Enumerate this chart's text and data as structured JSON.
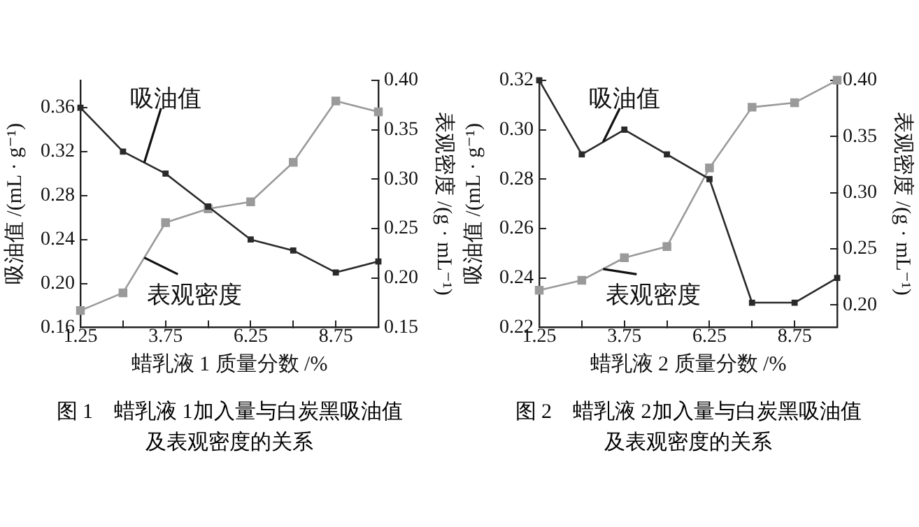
{
  "chart_data": [
    {
      "type": "line",
      "title": "图 1　蜡乳液 1加入量与白炭黑吸油值及表观密度的关系",
      "xlabel": "蜡乳液 1 质量分数 /%",
      "ylabel": "吸油值 /(mL · g⁻¹)",
      "y2label": "表观密度 /(g · mL⁻¹)",
      "x": [
        1.25,
        2.5,
        3.75,
        5.0,
        6.25,
        7.5,
        8.75,
        10.0
      ],
      "xlim": [
        1.25,
        10
      ],
      "xticks": [
        1.25,
        {
          "value": 2.5,
          "label": null
        },
        3.75,
        {
          "value": 5,
          "label": null
        },
        6.25,
        {
          "value": 7.5,
          "label": null
        },
        8.75
      ],
      "ylim": [
        0.16,
        0.385
      ],
      "yticks": [
        0.16,
        {
          "value": 0.2,
          "label": "0.20"
        },
        0.24,
        0.28,
        0.32,
        0.36
      ],
      "y2lim": [
        0.15,
        0.4
      ],
      "y2ticks": [
        0.15,
        {
          "value": 0.2,
          "label": "0.20"
        },
        0.25,
        {
          "value": 0.3,
          "label": "0.30"
        },
        0.35,
        {
          "value": 0.4,
          "label": "0.40"
        }
      ],
      "marker": "square",
      "grid": false,
      "legend": false,
      "series": [
        {
          "name": "吸油值",
          "color": "#2a2a2a",
          "values": [
            0.36,
            0.32,
            0.3,
            0.27,
            0.24,
            0.23,
            0.21,
            0.22
          ]
        },
        {
          "name": "表观密度",
          "color": "#9a9a9a",
          "axis": "y2",
          "values": [
            0.167,
            0.185,
            0.256,
            0.27,
            0.277,
            0.317,
            0.379,
            0.368
          ]
        }
      ]
    },
    {
      "type": "line",
      "title": "图 2　蜡乳液 2加入量与白炭黑吸油值及表观密度的关系",
      "xlabel": "蜡乳液 2 质量分数 /%",
      "ylabel": "吸油值 /(mL · g⁻¹)",
      "y2label": "表观密度 /(g · mL⁻¹)",
      "x": [
        1.25,
        2.5,
        3.75,
        5.0,
        6.25,
        7.5,
        8.75,
        10.0
      ],
      "xlim": [
        1.25,
        10
      ],
      "xticks": [
        1.25,
        {
          "value": 2.5,
          "label": null
        },
        3.75,
        {
          "value": 5,
          "label": null
        },
        6.25,
        {
          "value": 7.5,
          "label": null
        },
        8.75
      ],
      "ylim": [
        0.22,
        0.32
      ],
      "yticks": [
        0.22,
        0.24,
        0.26,
        0.28,
        {
          "value": 0.3,
          "label": "0.30"
        },
        0.32
      ],
      "y2lim": [
        0.18,
        0.4
      ],
      "y2ticks": [
        {
          "value": 0.2,
          "label": "0.20"
        },
        0.25,
        {
          "value": 0.3,
          "label": "0.30"
        },
        0.35,
        {
          "value": 0.4,
          "label": "0.40"
        }
      ],
      "marker": "square",
      "grid": false,
      "legend": false,
      "series": [
        {
          "name": "吸油值",
          "color": "#2a2a2a",
          "values": [
            0.32,
            0.29,
            0.3,
            0.29,
            0.28,
            0.23,
            0.23,
            0.24
          ]
        },
        {
          "name": "表观密度",
          "color": "#9a9a9a",
          "axis": "y2",
          "values": [
            0.213,
            0.222,
            0.242,
            0.252,
            0.322,
            0.376,
            0.38,
            0.4
          ]
        }
      ]
    }
  ]
}
